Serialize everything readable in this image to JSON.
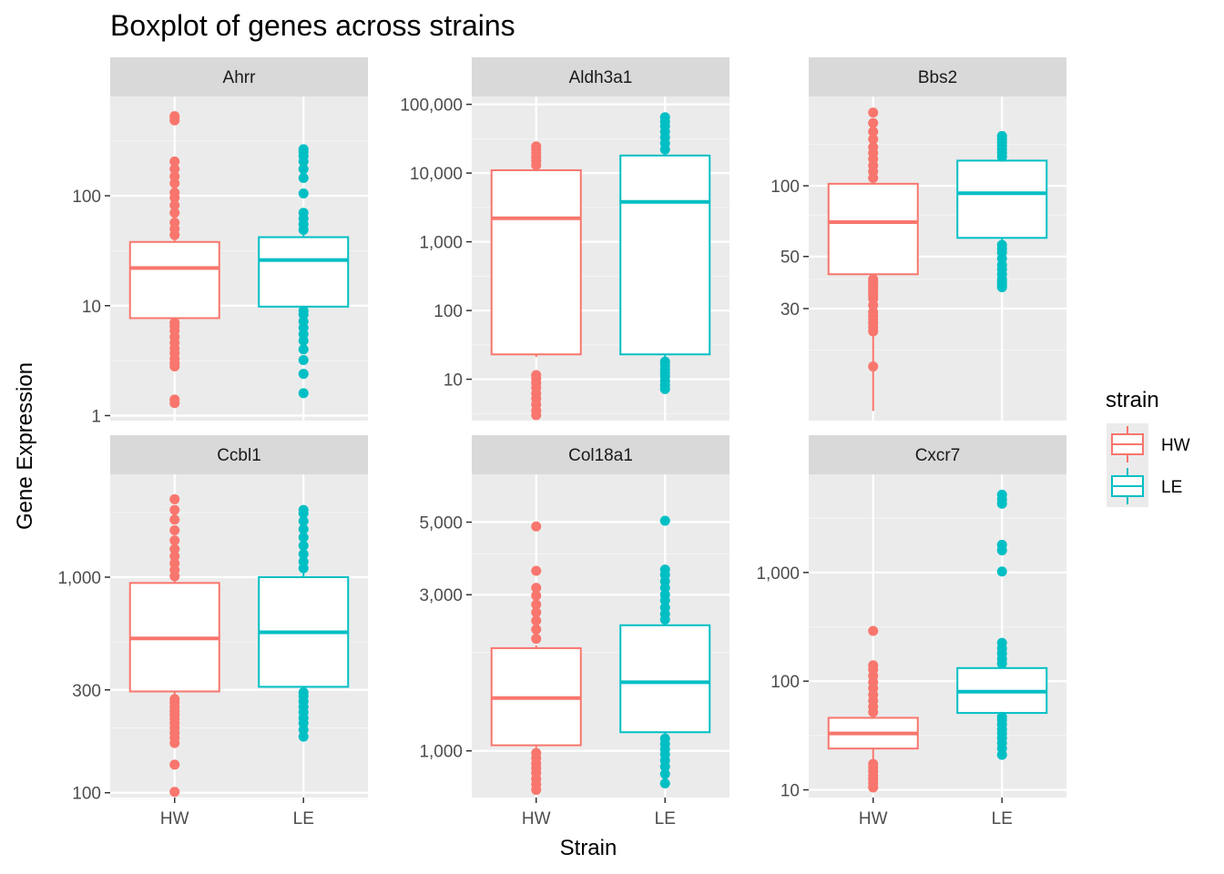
{
  "chart_data": {
    "type": "boxplot",
    "title": "Boxplot of genes across strains",
    "xlabel": "Strain",
    "ylabel": "Gene Expression",
    "categories": [
      "HW",
      "LE"
    ],
    "y_scale": "log10",
    "facet_layout": "2 rows x 3 columns",
    "legend": {
      "title": "strain",
      "position": "right",
      "entries": [
        {
          "label": "HW",
          "color": "#F8766D"
        },
        {
          "label": "LE",
          "color": "#00BFC4"
        }
      ]
    },
    "panels": [
      {
        "name": "Ahrr",
        "ylim": [
          0.9,
          800
        ],
        "y_ticks": [
          {
            "value": 1,
            "label": "1"
          },
          {
            "value": 10,
            "label": "10"
          },
          {
            "value": 100,
            "label": "100"
          }
        ],
        "y_minor": [
          3.16,
          31.6,
          316
        ],
        "series": [
          {
            "name": "HW",
            "whisker_low": 7.2,
            "q1": 7.7,
            "median": 22,
            "q3": 38,
            "whisker_high": 40,
            "outliers": [
              1.3,
              1.4,
              2.8,
              3.0,
              3.3,
              3.7,
              4.1,
              4.6,
              5.2,
              5.9,
              6.5,
              7.0,
              44,
              50,
              57,
              70,
              82,
              96,
              107,
              130,
              150,
              175,
              205,
              485,
              520,
              530
            ]
          },
          {
            "name": "LE",
            "whisker_low": 9.5,
            "q1": 9.8,
            "median": 26,
            "q3": 42,
            "whisker_high": 44,
            "outliers": [
              1.6,
              2.4,
              3.2,
              4.0,
              4.8,
              5.5,
              6.3,
              7.2,
              8.3,
              9.0,
              49,
              55,
              62,
              70,
              105,
              145,
              175,
              205,
              230,
              250,
              265
            ]
          }
        ]
      },
      {
        "name": "Aldh3a1",
        "ylim": [
          2.5,
          130000
        ],
        "y_ticks": [
          {
            "value": 10,
            "label": "10"
          },
          {
            "value": 100,
            "label": "100"
          },
          {
            "value": 1000,
            "label": "1,000"
          },
          {
            "value": 10000,
            "label": "10,000"
          },
          {
            "value": 100000,
            "label": "100,000"
          }
        ],
        "y_minor": [
          3.16,
          31.6,
          316,
          3162,
          31623
        ],
        "series": [
          {
            "name": "HW",
            "whisker_low": 21,
            "q1": 23,
            "median": 2200,
            "q3": 11000,
            "whisker_high": 12000,
            "outliers": [
              3.0,
              3.5,
              4.3,
              5.2,
              6.2,
              7.5,
              8.8,
              10.2,
              11.5,
              13000,
              15000,
              17000,
              19500,
              22000,
              24500
            ]
          },
          {
            "name": "LE",
            "whisker_low": 20,
            "q1": 23,
            "median": 3800,
            "q3": 18000,
            "whisker_high": 20000,
            "outliers": [
              7.2,
              8.2,
              9.5,
              11,
              12.5,
              14,
              16,
              18,
              22000,
              27000,
              33000,
              40000,
              48000,
              56000,
              65000
            ]
          }
        ]
      },
      {
        "name": "Bbs2",
        "ylim": [
          10,
          240
        ],
        "y_ticks": [
          {
            "value": 30,
            "label": "30"
          },
          {
            "value": 50,
            "label": "50"
          },
          {
            "value": 100,
            "label": "100"
          }
        ],
        "y_minor": [
          20,
          40,
          75,
          150
        ],
        "series": [
          {
            "name": "HW",
            "whisker_low": 11,
            "q1": 42,
            "median": 70,
            "q3": 102,
            "whisker_high": 104,
            "outliers": [
              17,
              24,
              25,
              26,
              27,
              28,
              29,
              31,
              33,
              34,
              35,
              36,
              37,
              38,
              39,
              40,
              108,
              115,
              122,
              130,
              138,
              146,
              158,
              170,
              185,
              205
            ]
          },
          {
            "name": "LE",
            "whisker_low": 58,
            "q1": 60,
            "median": 93,
            "q3": 128,
            "whisker_high": 130,
            "outliers": [
              37,
              38,
              39,
              40,
              42,
              44,
              46,
              49,
              52,
              54,
              56,
              133,
              138,
              143,
              148,
              153,
              158,
              163
            ]
          }
        ]
      },
      {
        "name": "Ccbl1",
        "ylim": [
          95,
          3000
        ],
        "y_ticks": [
          {
            "value": 100,
            "label": "100"
          },
          {
            "value": 300,
            "label": "300"
          },
          {
            "value": 1000,
            "label": "1,000"
          }
        ],
        "y_minor": [
          200,
          500,
          2000
        ],
        "series": [
          {
            "name": "HW",
            "whisker_low": 280,
            "q1": 295,
            "median": 520,
            "q3": 940,
            "whisker_high": 960,
            "outliers": [
              101,
              135,
              170,
              180,
              190,
              200,
              210,
              220,
              230,
              240,
              250,
              262,
              272,
              1010,
              1080,
              1160,
              1250,
              1350,
              1480,
              1650,
              1850,
              2050,
              2300
            ]
          },
          {
            "name": "LE",
            "whisker_low": 300,
            "q1": 310,
            "median": 555,
            "q3": 1000,
            "whisker_high": 1050,
            "outliers": [
              182,
              196,
              210,
              222,
              236,
              250,
              265,
              280,
              292,
              1100,
              1180,
              1280,
              1400,
              1530,
              1670,
              1820,
              1980,
              2050
            ]
          }
        ]
      },
      {
        "name": "Col18a1",
        "ylim": [
          720,
          7000
        ],
        "y_ticks": [
          {
            "value": 1000,
            "label": "1,000"
          },
          {
            "value": 3000,
            "label": "3,000"
          },
          {
            "value": 5000,
            "label": "5,000"
          }
        ],
        "y_minor": [
          2000,
          4000
        ],
        "series": [
          {
            "name": "HW",
            "whisker_low": 1020,
            "q1": 1040,
            "median": 1450,
            "q3": 2060,
            "whisker_high": 2100,
            "outliers": [
              760,
              790,
              820,
              855,
              885,
              915,
              950,
              985,
              2200,
              2350,
              2500,
              2650,
              2800,
              2980,
              3150,
              3550,
              4850
            ]
          },
          {
            "name": "LE",
            "whisker_low": 1100,
            "q1": 1140,
            "median": 1620,
            "q3": 2420,
            "whisker_high": 2450,
            "outliers": [
              795,
              850,
              895,
              935,
              975,
              1010,
              1050,
              1090,
              2520,
              2620,
              2740,
              2880,
              3000,
              3150,
              3300,
              3450,
              3580,
              5050
            ]
          }
        ]
      },
      {
        "name": "Cxcr7",
        "ylim": [
          8.5,
          8000
        ],
        "y_ticks": [
          {
            "value": 10,
            "label": "10"
          },
          {
            "value": 100,
            "label": "100"
          },
          {
            "value": 1000,
            "label": "1,000"
          }
        ],
        "y_minor": [
          31.6,
          316,
          3162
        ],
        "series": [
          {
            "name": "HW",
            "whisker_low": 18,
            "q1": 24,
            "median": 33,
            "q3": 46,
            "whisker_high": 48,
            "outliers": [
              10.5,
              11.5,
              12.5,
              13.5,
              14.8,
              16,
              17.3,
              52,
              58,
              66,
              75,
              86,
              98,
              112,
              128,
              140,
              290
            ]
          },
          {
            "name": "LE",
            "whisker_low": 49,
            "q1": 51,
            "median": 80,
            "q3": 132,
            "whisker_high": 135,
            "outliers": [
              21,
              24,
              27,
              30,
              33,
              36,
              40,
              44,
              47,
              145,
              160,
              180,
              200,
              225,
              1020,
              1600,
              1800,
              4300,
              4700,
              5200
            ]
          }
        ]
      }
    ]
  }
}
